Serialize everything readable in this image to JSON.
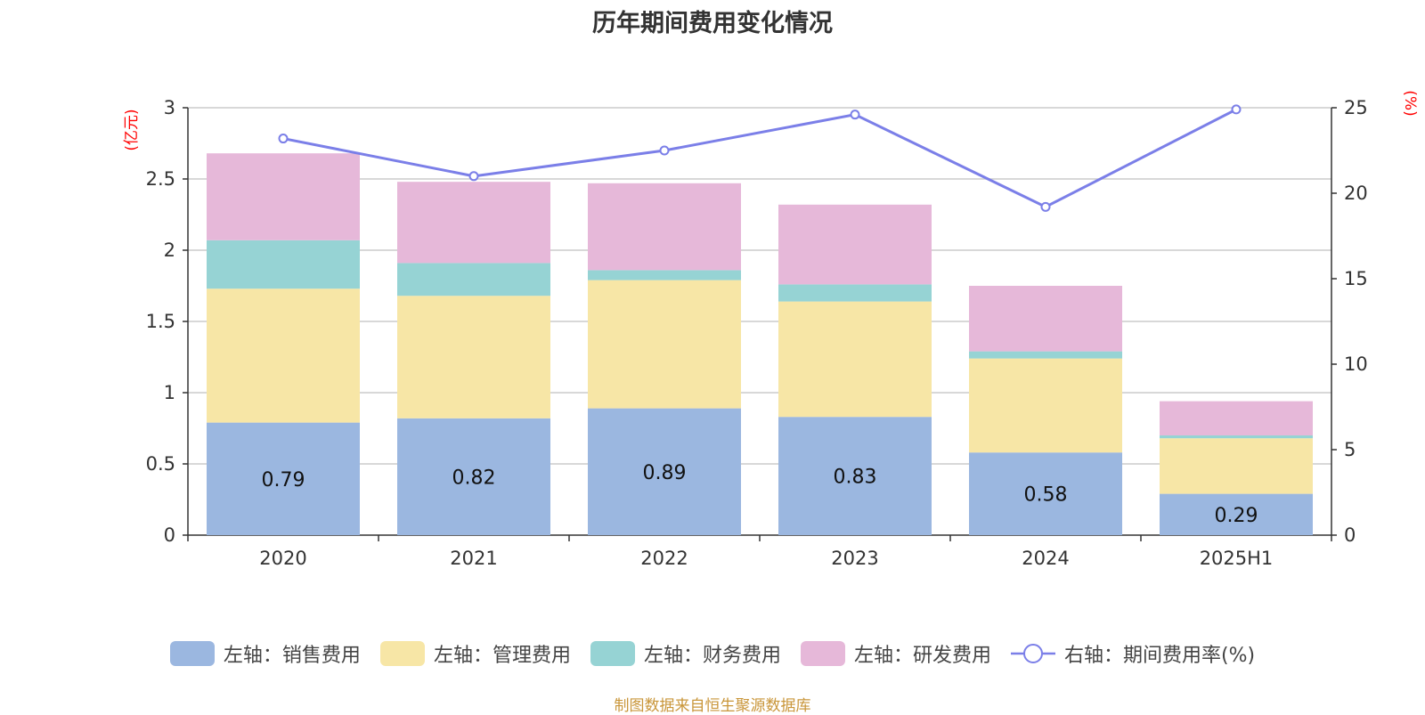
{
  "title": "历年期间费用变化情况",
  "source_note": "制图数据来自恒生聚源数据库",
  "colors": {
    "sales": "#9bb7e0",
    "admin": "#f7e6a6",
    "finance": "#96d3d4",
    "rd": "#e6b8d9",
    "rate_line": "#7b7fe8",
    "grid": "#cccccc",
    "axis": "#333333",
    "unit": "#ff0000"
  },
  "legend": [
    {
      "label": "左轴：销售费用",
      "kind": "bar",
      "color_key": "sales"
    },
    {
      "label": "左轴：管理费用",
      "kind": "bar",
      "color_key": "admin"
    },
    {
      "label": "左轴：财务费用",
      "kind": "bar",
      "color_key": "finance"
    },
    {
      "label": "左轴：研发费用",
      "kind": "bar",
      "color_key": "rd"
    },
    {
      "label": "右轴：期间费用率(%)",
      "kind": "line",
      "color_key": "rate_line"
    }
  ],
  "chart_data": {
    "type": "bar",
    "stacked": true,
    "title": "历年期间费用变化情况",
    "categories": [
      "2020",
      "2021",
      "2022",
      "2023",
      "2024",
      "2025H1"
    ],
    "left_axis": {
      "unit": "(亿元)",
      "ylim": [
        0,
        3
      ],
      "ticks": [
        "0",
        "0.5",
        "1",
        "1.5",
        "2",
        "2.5",
        "3"
      ]
    },
    "right_axis": {
      "unit": "(%)",
      "ylim": [
        0,
        25
      ],
      "ticks": [
        "0",
        "5",
        "10",
        "15",
        "20",
        "25"
      ]
    },
    "series": [
      {
        "name": "左轴：销售费用",
        "axis": "left",
        "values": [
          0.79,
          0.82,
          0.89,
          0.83,
          0.58,
          0.29
        ],
        "data_labels": [
          "0.79",
          "0.82",
          "0.89",
          "0.83",
          "0.58",
          "0.29"
        ]
      },
      {
        "name": "左轴：管理费用",
        "axis": "left",
        "values": [
          0.94,
          0.86,
          0.9,
          0.81,
          0.66,
          0.39
        ]
      },
      {
        "name": "左轴：财务费用",
        "axis": "left",
        "values": [
          0.34,
          0.23,
          0.07,
          0.12,
          0.05,
          0.02
        ]
      },
      {
        "name": "左轴：研发费用",
        "axis": "left",
        "values": [
          0.61,
          0.57,
          0.61,
          0.56,
          0.46,
          0.24
        ]
      },
      {
        "name": "右轴：期间费用率(%)",
        "axis": "right",
        "type": "line",
        "values": [
          23.2,
          21.0,
          22.5,
          24.6,
          19.2,
          24.9
        ]
      }
    ],
    "grid": true,
    "legend_position": "bottom"
  }
}
